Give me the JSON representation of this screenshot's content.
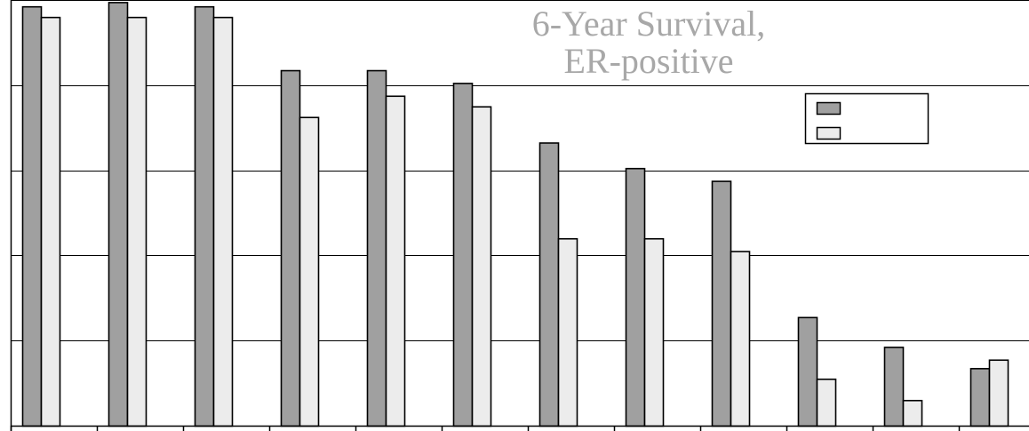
{
  "chart_data": {
    "type": "bar",
    "title": "6-Year Survival, ER-positive",
    "title_lines": [
      "6-Year Survival,",
      "ER-positive"
    ],
    "categories": [
      "",
      "",
      "",
      "",
      "",
      "",
      "",
      "",
      "",
      "",
      "",
      ""
    ],
    "series": [
      {
        "color": "#a0a0a0",
        "values": [
          98.5,
          99.5,
          98.5,
          83.5,
          83.5,
          80.5,
          66.5,
          60.5,
          57.5,
          25.5,
          18.5,
          13.5
        ]
      },
      {
        "color": "#ececec",
        "values": [
          96.0,
          96.0,
          96.0,
          72.5,
          77.5,
          75.0,
          44.0,
          44.0,
          41.0,
          11.0,
          6.0,
          15.5
        ]
      }
    ],
    "ylim": [
      0,
      100
    ],
    "yticks": [
      0,
      20,
      40,
      60,
      80,
      100
    ],
    "grid": true,
    "legend": {
      "position": "top-right",
      "entries": [
        "",
        ""
      ]
    },
    "xlabel": "",
    "ylabel": ""
  }
}
